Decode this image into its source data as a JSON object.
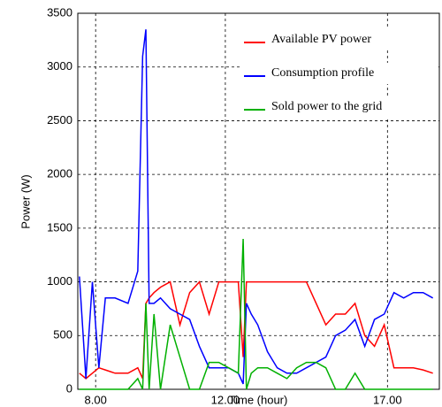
{
  "chart_data": {
    "type": "line",
    "x_label": "Time (hour)",
    "y_label": "Power (W)",
    "xlim": [
      7.45,
      18.6
    ],
    "xticks": [
      {
        "value": 8,
        "label": "8.00"
      },
      {
        "value": 12,
        "label": "12.00"
      },
      {
        "value": 17,
        "label": "17.00"
      }
    ],
    "ylim": [
      0,
      3500
    ],
    "yticks": [
      0,
      500,
      1000,
      1500,
      2000,
      2500,
      3000,
      3500
    ],
    "grid": true,
    "legend": "upper right",
    "x": [
      7.5,
      7.7,
      7.9,
      8.1,
      8.3,
      8.6,
      9.0,
      9.3,
      9.45,
      9.55,
      9.65,
      9.8,
      10.0,
      10.3,
      10.6,
      10.9,
      11.2,
      11.5,
      11.8,
      12.1,
      12.4,
      12.55,
      12.65,
      12.8,
      13.0,
      13.3,
      13.6,
      13.9,
      14.2,
      14.5,
      14.8,
      15.1,
      15.4,
      15.7,
      16.0,
      16.3,
      16.6,
      16.9,
      17.2,
      17.5,
      17.8,
      18.1,
      18.4
    ],
    "series": [
      {
        "name": "Available PV power",
        "color": "#ff0000",
        "values": [
          150,
          100,
          150,
          200,
          180,
          150,
          150,
          200,
          100,
          800,
          850,
          900,
          950,
          1000,
          600,
          900,
          1000,
          700,
          1000,
          1000,
          1000,
          300,
          1000,
          1000,
          1000,
          1000,
          1000,
          1000,
          1000,
          1000,
          800,
          600,
          700,
          700,
          800,
          500,
          400,
          600,
          200,
          200,
          200,
          180,
          150
        ]
      },
      {
        "name": "Consumption profile",
        "color": "#0000ff",
        "values": [
          1050,
          100,
          1000,
          200,
          850,
          850,
          800,
          1100,
          3100,
          3350,
          800,
          800,
          850,
          750,
          700,
          650,
          400,
          200,
          200,
          200,
          150,
          50,
          800,
          700,
          600,
          350,
          200,
          150,
          150,
          200,
          250,
          300,
          500,
          550,
          650,
          400,
          650,
          700,
          900,
          850,
          900,
          900,
          850
        ]
      },
      {
        "name": "Sold power to the grid",
        "color": "#00b000",
        "values": [
          0,
          0,
          0,
          0,
          0,
          0,
          0,
          100,
          0,
          800,
          0,
          700,
          0,
          600,
          300,
          0,
          0,
          250,
          250,
          200,
          150,
          1400,
          0,
          150,
          200,
          200,
          150,
          100,
          200,
          250,
          250,
          200,
          0,
          0,
          150,
          0,
          0,
          0,
          0,
          0,
          0,
          0,
          0
        ]
      }
    ]
  }
}
